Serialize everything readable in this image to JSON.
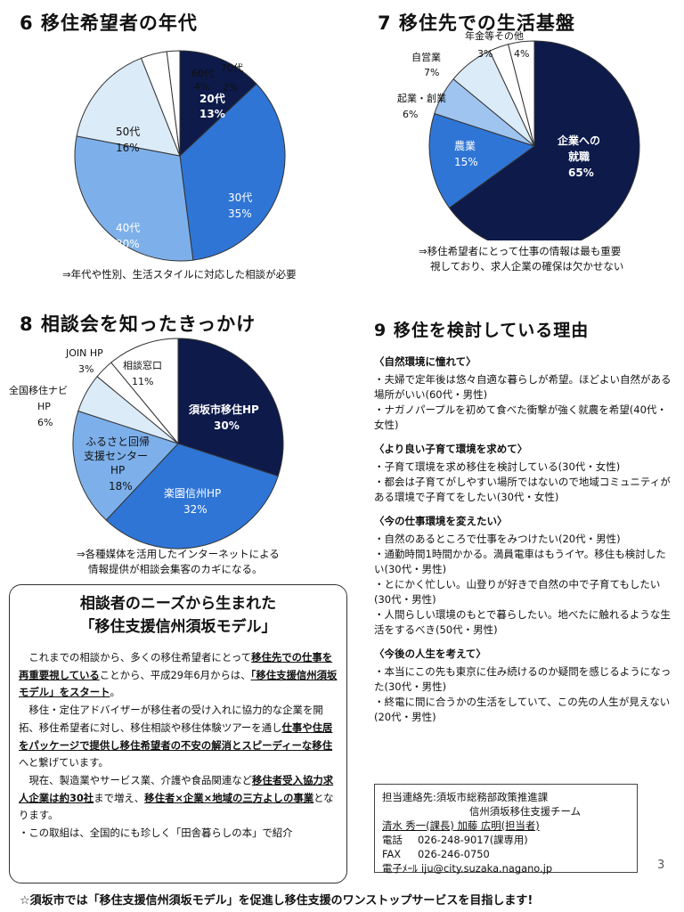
{
  "sec6": {
    "title": "6 移住希望者の年代",
    "note": "⇒年代や性別、生活スタイルに対応した相談が必要",
    "chart_data": {
      "type": "pie",
      "slices": [
        {
          "label": "20代",
          "value": 13,
          "color": "#0d1a4a"
        },
        {
          "label": "30代",
          "value": 35,
          "color": "#2f75d6"
        },
        {
          "label": "40代",
          "value": 30,
          "color": "#7db0ea"
        },
        {
          "label": "50代",
          "value": 16,
          "color": "#dcebf8"
        },
        {
          "label": "60代",
          "value": 4,
          "color": "#ffffff"
        },
        {
          "label": "70代",
          "value": 2,
          "color": "#ffffff"
        }
      ]
    }
  },
  "sec7": {
    "title": "7 移住先での生活基盤",
    "note_lines": [
      "⇒移住希望者にとって仕事の情報は最も重要",
      "視しており、求人企業の確保は欠かせない"
    ],
    "chart_data": {
      "type": "pie",
      "slices": [
        {
          "label": "企業への就職",
          "value": 65,
          "color": "#0d1a4a"
        },
        {
          "label": "農業",
          "value": 15,
          "color": "#2f75d6"
        },
        {
          "label": "起業・創業",
          "value": 6,
          "color": "#9fc4ef"
        },
        {
          "label": "自営業",
          "value": 7,
          "color": "#dcebf8"
        },
        {
          "label": "年金等",
          "value": 3,
          "color": "#ffffff"
        },
        {
          "label": "その他",
          "value": 4,
          "color": "#ffffff"
        }
      ]
    }
  },
  "sec8": {
    "title": "8 相談会を知ったきっかけ",
    "note_lines": [
      "⇒各種媒体を活用したインターネットによる",
      "情報提供が相談会集客のカギになる。"
    ],
    "chart_data": {
      "type": "pie",
      "slices": [
        {
          "label": "須坂市移住HP",
          "value": 30,
          "color": "#0d1a4a"
        },
        {
          "label": "楽園信州HP",
          "value": 32,
          "color": "#2f75d6"
        },
        {
          "label": "ふるさと回帰支援センターHP",
          "value": 18,
          "color": "#7db0ea"
        },
        {
          "label": "全国移住ナビHP",
          "value": 6,
          "color": "#dcebf8"
        },
        {
          "label": "JOIN HP",
          "value": 3,
          "color": "#ffffff"
        },
        {
          "label": "相談窓口",
          "value": 11,
          "color": "#ffffff"
        }
      ]
    }
  },
  "sec9": {
    "title": "9 移住を検討している理由",
    "groups": [
      {
        "heading": "〈自然環境に憧れて〉",
        "items": [
          "・夫婦で定年後は悠々自適な暮らしが希望。ほどよい自然がある場所がいい(60代・男性)",
          "・ナガノパープルを初めて食べた衝撃が強く就農を希望(40代・女性)"
        ]
      },
      {
        "heading": "〈より良い子育て環境を求めて〉",
        "items": [
          "・子育て環境を求め移住を検討している(30代・女性)",
          "・都会は子育てがしやすい場所ではないので地域コミュニティがある環境で子育てをしたい(30代・女性)"
        ]
      },
      {
        "heading": "〈今の仕事環境を変えたい〉",
        "items": [
          "・自然のあるところで仕事をみつけたい(20代・男性)",
          "・通勤時間1時間かかる。満員電車はもうイヤ。移住も検討したい(30代・男性)",
          "・とにかく忙しい。山登りが好きで自然の中で子育てもしたい(30代・男性)",
          "・人間らしい環境のもとで暮らしたい。地べたに触れるような生活をするべき(50代・男性)"
        ]
      },
      {
        "heading": "〈今後の人生を考えて〉",
        "items": [
          "・本当にこの先も東京に住み続けるのか疑問を感じるようになった(30代・男性)",
          "・終電に間に合うかの生活をしていて、この先の人生が見えない(20代・男性)"
        ]
      }
    ]
  },
  "model_box": {
    "title1": "相談者のニーズから生まれた",
    "title2": "「移住支援信州須坂モデル」",
    "p1_a": "これまでの相談から、多くの移住希望者にとって",
    "p1_b": "移住先での仕事を再重要視している",
    "p1_c": "ことから、平成29年6月からは、",
    "p1_d": "「移住支援信州須坂モデル」をスタート",
    "p1_e": "。",
    "p2_a": "移住・定住アドバイザーが移住者の受け入れに協力的な企業を開拓、移住希望者に対し、移住相談や移住体験ツアーを通し",
    "p2_b": "仕事や住居をパッケージで提供し移住希望者の不安の解消とスピーディーな移住",
    "p2_c": "へと繋げています。",
    "p3_a": "現在、製造業やサービス業、介護や食品関連など",
    "p3_b": "移住者受入協力求人企業は約30社",
    "p3_c": "まで増え、",
    "p3_d": "移住者×企業×地域の三方よしの事業",
    "p3_e": "となります。",
    "p4": "・この取組は、全国的にも珍しく「田舎暮らしの本」で紹介"
  },
  "contact": {
    "line1": "担当連絡先:須坂市総務部政策推進課",
    "line2": "信州須坂移住支援チーム",
    "line3": "清水 秀一(課長) 加藤 広明(担当者)",
    "tel_label": "電話",
    "tel": "026-248-9017(課専用)",
    "fax_label": "FAX",
    "fax": "026-246-0750",
    "mail_label": "電子ﾒｰﾙ",
    "mail": "iju@city.suzaka.nagano.jp"
  },
  "page_number": "3",
  "footer": "☆須坂市では「移住支援信州須坂モデル」を促進し移住支援のワンストップサービスを目指します!"
}
